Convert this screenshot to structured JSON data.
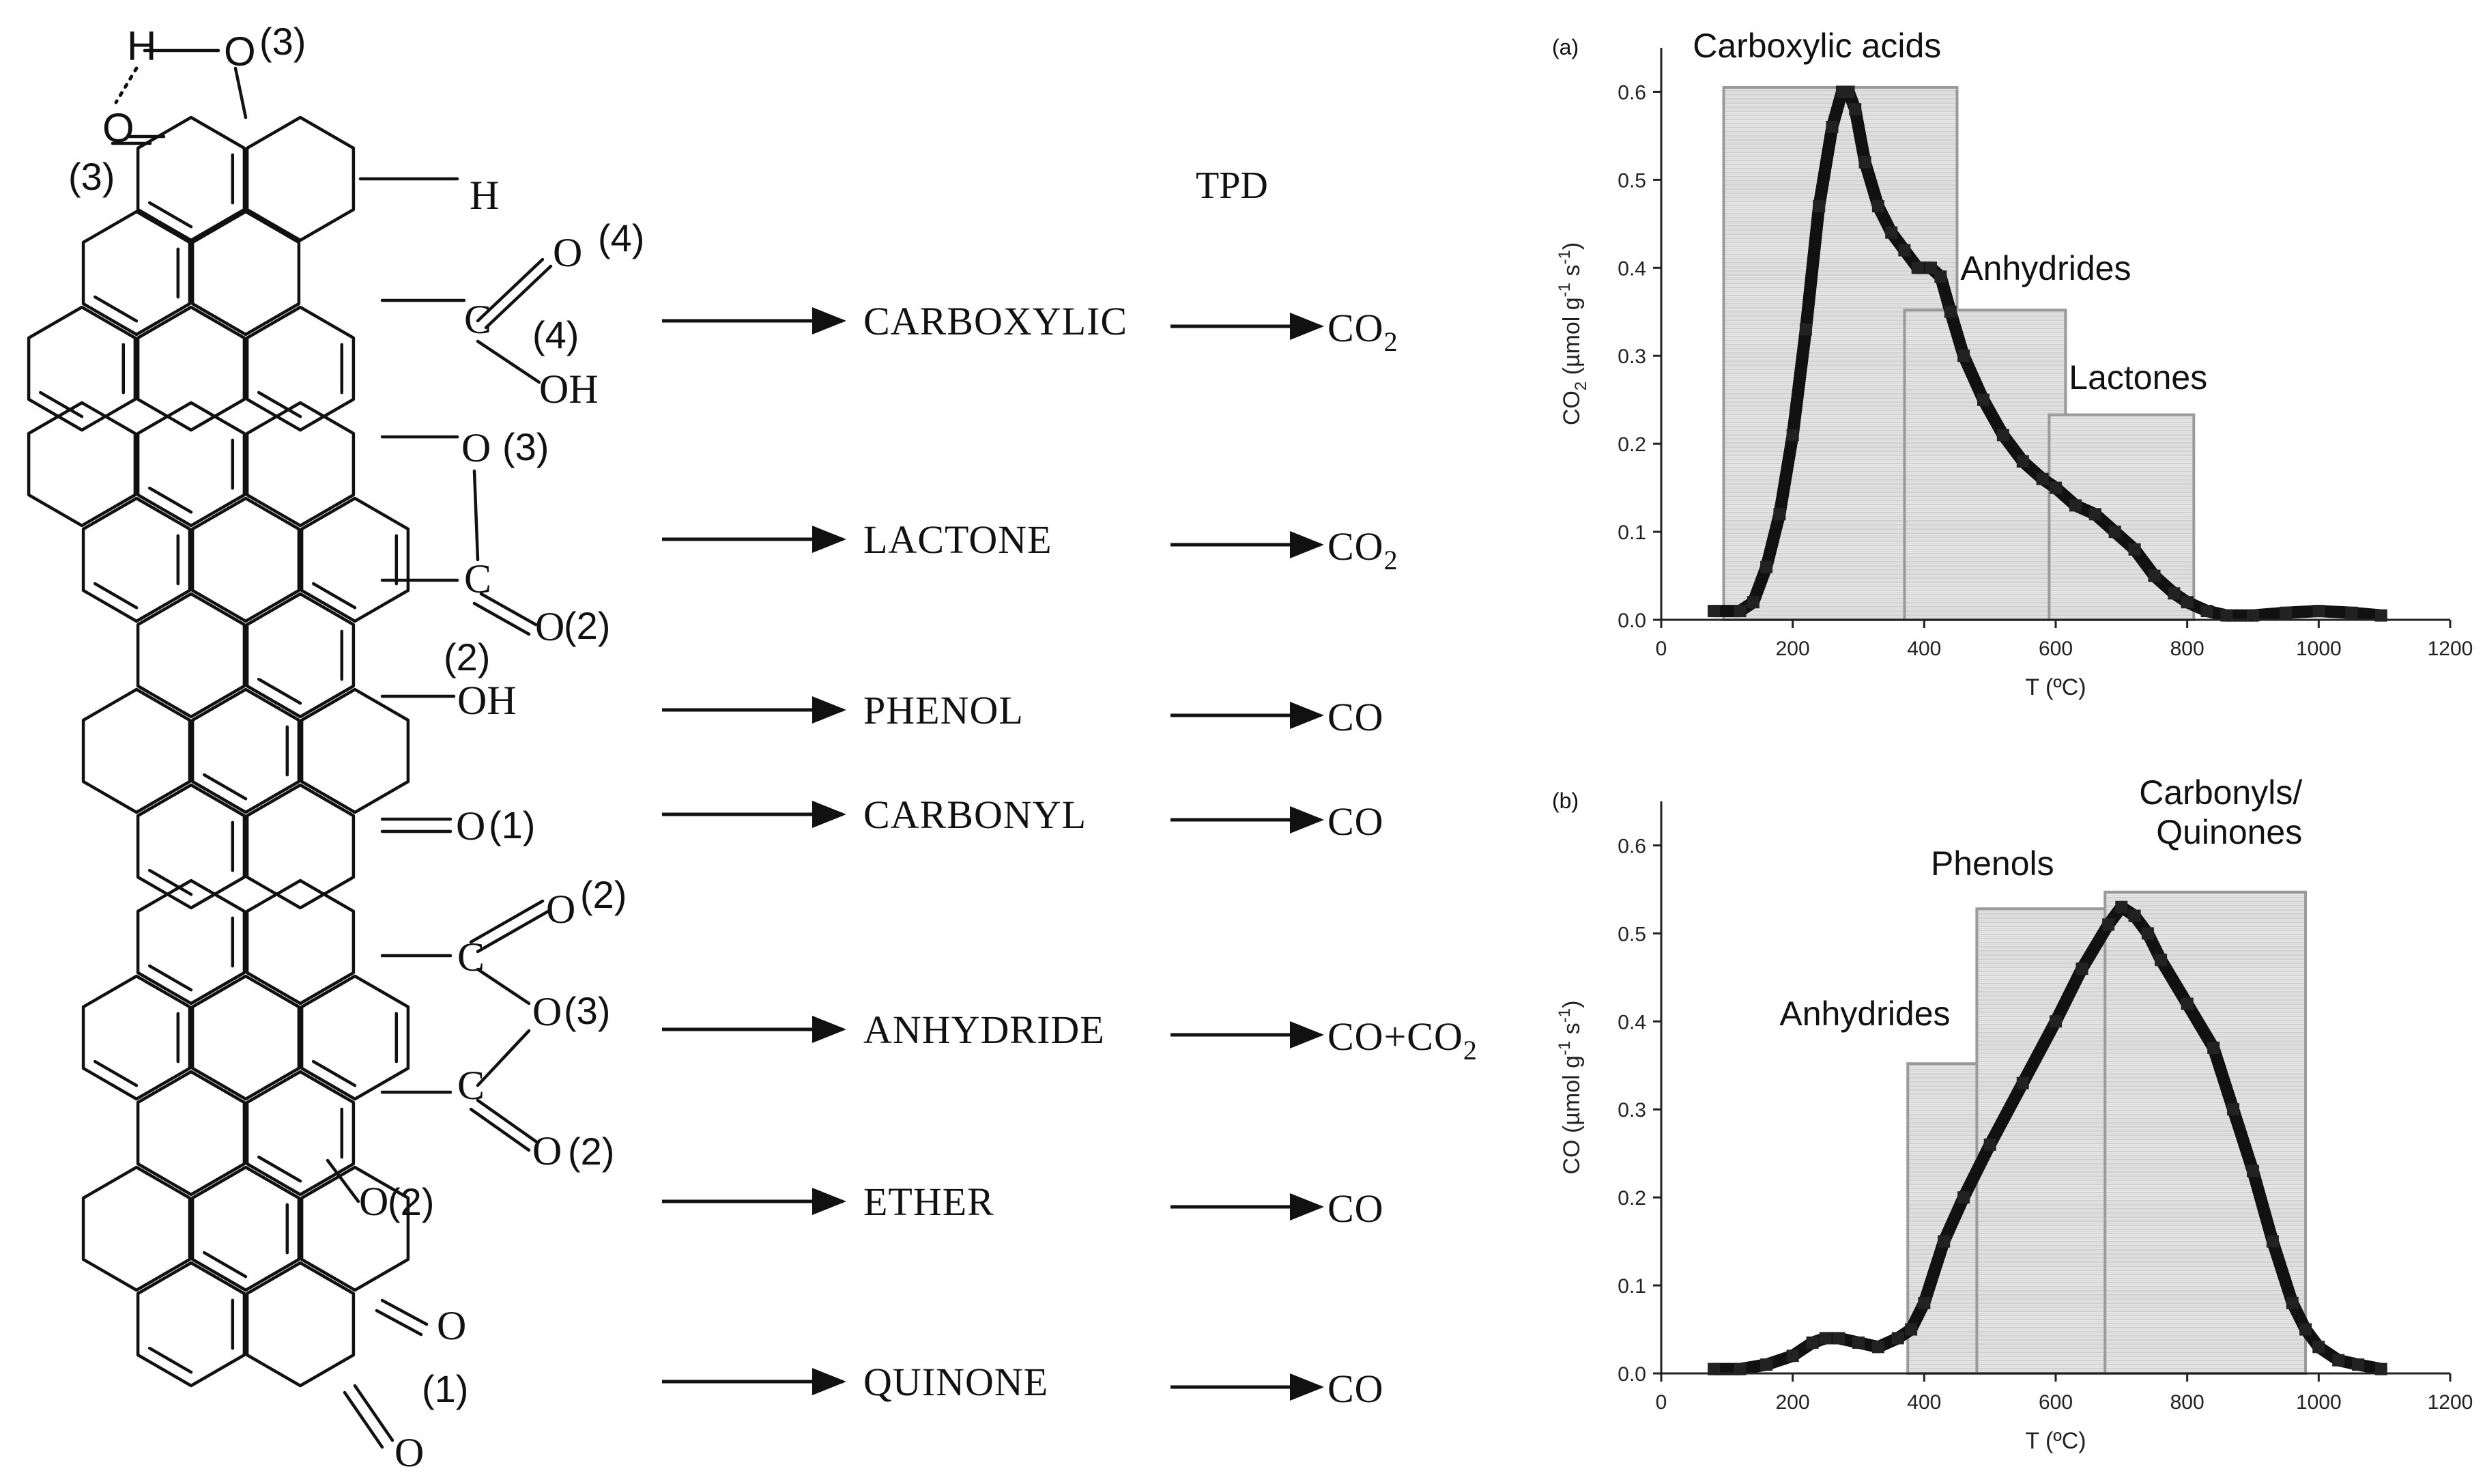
{
  "scheme": {
    "tpd_label": "TPD",
    "rows": [
      {
        "group": "CARBOXYLIC",
        "product": "CO",
        "product_sub": "2"
      },
      {
        "group": "LACTONE",
        "product": "CO",
        "product_sub": "2"
      },
      {
        "group": "PHENOL",
        "product": "CO",
        "product_sub": ""
      },
      {
        "group": "CARBONYL",
        "product": "CO",
        "product_sub": ""
      },
      {
        "group": "ANHYDRIDE",
        "product": "CO+CO",
        "product_sub": "2"
      },
      {
        "group": "ETHER",
        "product": "CO",
        "product_sub": ""
      },
      {
        "group": "QUINONE",
        "product": "CO",
        "product_sub": ""
      }
    ],
    "atoms": {
      "h_top": "H",
      "o_top": "O",
      "o_top_num": "(3)",
      "o_left": "O",
      "o_left_num": "(3)",
      "h_right": "H",
      "carboxyl_o": "O",
      "carboxyl_o_num": "(4)",
      "carboxyl_c": "C",
      "carboxyl_num": "(4)",
      "carboxyl_oh": "OH",
      "lactone_o": "O",
      "lactone_o_num": "(3)",
      "lactone_c": "C",
      "lactone_eq_o": "O",
      "lactone_eq_num": "(2)",
      "phenol_num": "(2)",
      "phenol_oh": "OH",
      "carbonyl_o": "O",
      "carbonyl_num": "(1)",
      "anh_o1": "O",
      "anh_o1_num": "(2)",
      "anh_c1": "C",
      "anh_o": "O",
      "anh_o_num": "(3)",
      "anh_c2": "C",
      "anh_o2": "O",
      "anh_o2_num": "(2)",
      "ether_o": "O",
      "ether_num": "(2)",
      "quinone_o1": "O",
      "quinone_num": "(1)",
      "quinone_o2": "O"
    }
  },
  "chart_data": [
    {
      "type": "scatter",
      "panel_label": "(a)",
      "ylabel": "CO2 (µmol g-1 s-1)",
      "ylabel_main": "CO",
      "ylabel_sub": "2",
      "ylabel_unit": " (µmol g",
      "ylabel_sup1": "-1",
      "ylabel_s": " s",
      "ylabel_sup2": "-1",
      "ylabel_close": ")",
      "xlabel": "T (ºC)",
      "xlim": [
        0,
        1200
      ],
      "ylim": [
        0.0,
        0.65
      ],
      "xticks": [
        "0",
        "200",
        "400",
        "600",
        "800",
        "1000",
        "1200"
      ],
      "yticks": [
        "0.0",
        "0.1",
        "0.2",
        "0.3",
        "0.4",
        "0.5",
        "0.6"
      ],
      "regions": [
        {
          "label": "Carboxylic acids",
          "x_range": [
            95,
            450
          ],
          "height": 0.605
        },
        {
          "label": "Anhydrides",
          "x_range": [
            370,
            615
          ],
          "height": 0.352
        },
        {
          "label": "Lactones",
          "x_range": [
            590,
            810
          ],
          "height": 0.233
        }
      ],
      "series": [
        {
          "name": "CO2",
          "x": [
            80,
            120,
            140,
            160,
            180,
            200,
            220,
            240,
            260,
            275,
            285,
            295,
            310,
            330,
            350,
            370,
            390,
            410,
            425,
            440,
            460,
            490,
            520,
            550,
            580,
            600,
            630,
            660,
            690,
            720,
            750,
            780,
            800,
            830,
            860,
            900,
            950,
            1000,
            1050,
            1095
          ],
          "y": [
            0.01,
            0.01,
            0.02,
            0.06,
            0.12,
            0.21,
            0.33,
            0.47,
            0.56,
            0.6,
            0.6,
            0.58,
            0.52,
            0.47,
            0.44,
            0.42,
            0.4,
            0.4,
            0.39,
            0.35,
            0.3,
            0.25,
            0.21,
            0.18,
            0.16,
            0.15,
            0.13,
            0.12,
            0.1,
            0.08,
            0.05,
            0.03,
            0.02,
            0.01,
            0.005,
            0.005,
            0.008,
            0.01,
            0.008,
            0.005
          ]
        }
      ]
    },
    {
      "type": "scatter",
      "panel_label": "(b)",
      "ylabel": "CO (µmol g-1 s-1)",
      "ylabel_main": "CO",
      "ylabel_sub": "",
      "ylabel_unit": " (µmol g",
      "ylabel_sup1": "-1",
      "ylabel_s": " s",
      "ylabel_sup2": "-1",
      "ylabel_close": ")",
      "xlabel": "T (ºC)",
      "xlim": [
        0,
        1200
      ],
      "ylim": [
        0.0,
        0.65
      ],
      "xticks": [
        "0",
        "200",
        "400",
        "600",
        "800",
        "1000",
        "1200"
      ],
      "yticks": [
        "0.0",
        "0.1",
        "0.2",
        "0.3",
        "0.4",
        "0.5",
        "0.6"
      ],
      "regions": [
        {
          "label": "Anhydrides",
          "x_range": [
            375,
            615
          ],
          "height": 0.352
        },
        {
          "label": "Phenols",
          "x_range": [
            480,
            735
          ],
          "height": 0.528
        },
        {
          "label": "Carbonyls/ Quinones",
          "label_line1": "Carbonyls/",
          "label_line2": "Quinones",
          "x_range": [
            675,
            980
          ],
          "height": 0.547
        }
      ],
      "series": [
        {
          "name": "CO",
          "x": [
            80,
            120,
            160,
            200,
            230,
            250,
            270,
            300,
            330,
            360,
            380,
            400,
            430,
            460,
            500,
            550,
            600,
            640,
            680,
            700,
            720,
            740,
            760,
            800,
            840,
            870,
            900,
            930,
            960,
            980,
            1000,
            1030,
            1060,
            1095
          ],
          "y": [
            0.005,
            0.005,
            0.01,
            0.02,
            0.035,
            0.04,
            0.04,
            0.035,
            0.03,
            0.04,
            0.05,
            0.08,
            0.15,
            0.2,
            0.26,
            0.33,
            0.4,
            0.46,
            0.51,
            0.53,
            0.52,
            0.5,
            0.47,
            0.42,
            0.37,
            0.3,
            0.23,
            0.15,
            0.08,
            0.05,
            0.03,
            0.015,
            0.01,
            0.005
          ]
        }
      ]
    }
  ]
}
